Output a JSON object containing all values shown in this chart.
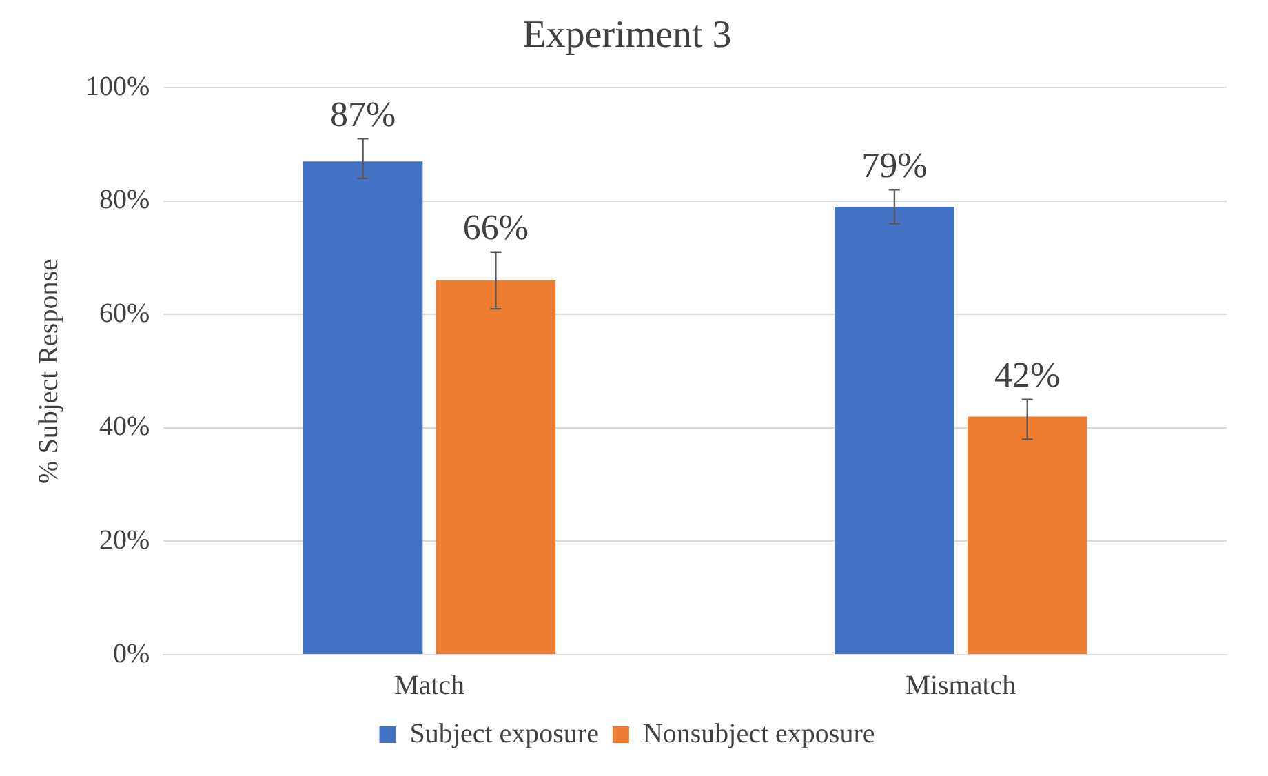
{
  "chart_data": {
    "type": "bar",
    "title": "Experiment 3",
    "ylabel": "% Subject Response",
    "categories": [
      "Match",
      "Mismatch"
    ],
    "series": [
      {
        "name": "Subject exposure",
        "color": "#4472c4",
        "values": [
          87,
          79
        ],
        "errors": [
          [
            84,
            91
          ],
          [
            76,
            82
          ]
        ],
        "value_labels": [
          "87%",
          "79%"
        ]
      },
      {
        "name": "Nonsubject exposure",
        "color": "#ed7d31",
        "values": [
          66,
          42
        ],
        "errors": [
          [
            61,
            71
          ],
          [
            38,
            45
          ]
        ],
        "value_labels": [
          "66%",
          "42%"
        ]
      }
    ],
    "ylim": [
      0,
      100
    ],
    "yticks": [
      {
        "value": 0,
        "label": "0%"
      },
      {
        "value": 20,
        "label": "20%"
      },
      {
        "value": 40,
        "label": "40%"
      },
      {
        "value": 60,
        "label": "60%"
      },
      {
        "value": 80,
        "label": "80%"
      },
      {
        "value": 100,
        "label": "100%"
      }
    ],
    "grid": "y",
    "legend": "bottom"
  }
}
